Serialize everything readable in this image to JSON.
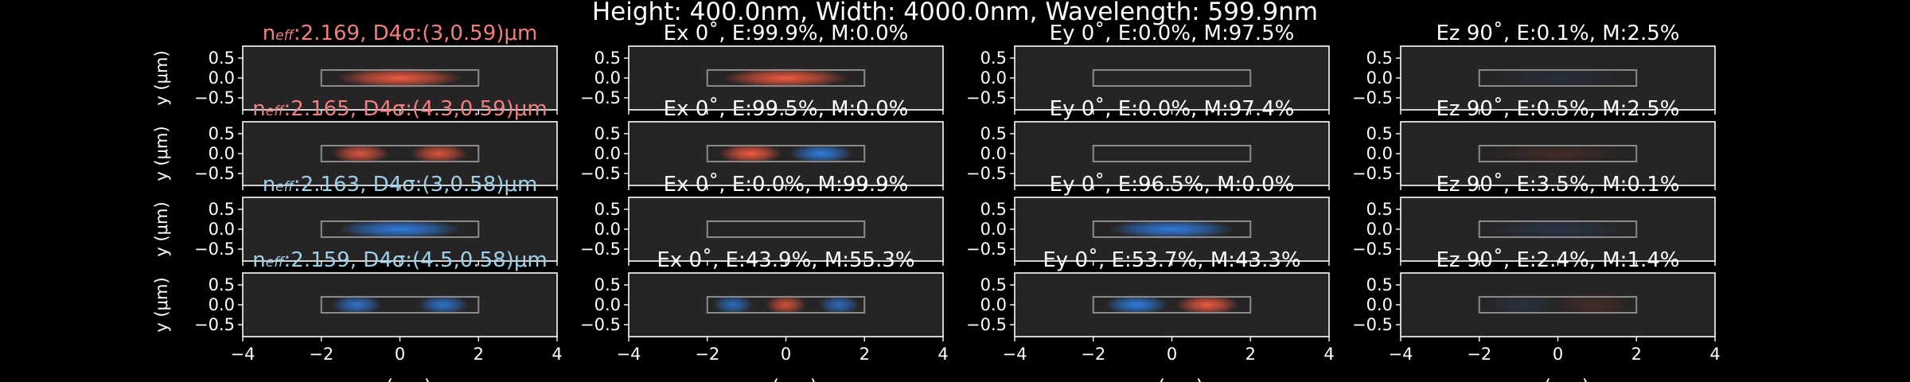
{
  "figure": {
    "suptitle": "Height: 400.0nm, Width: 4000.0nm, Wavelength: 599.9nm",
    "ylabel": "y (μm)",
    "xlabel": "x (μm)",
    "colors": {
      "background": "#000000",
      "panel": "#262424",
      "text": "#ffffff",
      "mode_te": "#f08080",
      "mode_tm": "#9ed0ea",
      "positive": "#f05a40",
      "negative": "#2f7de0",
      "waveguide": "#8a8a8a"
    }
  },
  "chart_data": {
    "type": "heatmap",
    "xlim": [
      -4,
      4
    ],
    "ylim": [
      -0.8,
      0.8
    ],
    "xticks": [
      "−4",
      "−2",
      "0",
      "2",
      "4"
    ],
    "yticks": [
      "0.5",
      "0.0",
      "−0.5"
    ],
    "waveguide": {
      "x": [
        -2,
        2
      ],
      "y": [
        -0.2,
        0.2
      ]
    },
    "rows": [
      {
        "mode_title": {
          "prefix": "n",
          "sub": "eff",
          "rest": ":2.169, D4σ:(3,0.59)μm",
          "color": "#f08080"
        },
        "panels": [
          {
            "title": "",
            "lobes": [
              {
                "x": 0,
                "sx": 1.0,
                "sy": 0.16,
                "amp": 1.0,
                "sign": 1
              }
            ]
          },
          {
            "title": "Ex 0˚, E:99.9%, M:0.0%",
            "lobes": [
              {
                "x": 0,
                "sx": 1.0,
                "sy": 0.16,
                "amp": 1.0,
                "sign": 1
              }
            ]
          },
          {
            "title": "Ey 0˚, E:0.0%, M:97.5%",
            "lobes": []
          },
          {
            "title": "Ez 90˚, E:0.1%, M:2.5%",
            "lobes": [
              {
                "x": 0,
                "sx": 1.2,
                "sy": 0.16,
                "amp": 0.12,
                "sign": -1
              }
            ]
          }
        ]
      },
      {
        "mode_title": {
          "prefix": "n",
          "sub": "eff",
          "rest": ":2.165, D4σ:(4.3,0.59)μm",
          "color": "#f08080"
        },
        "panels": [
          {
            "title": "",
            "lobes": [
              {
                "x": -1.0,
                "sx": 0.45,
                "sy": 0.16,
                "amp": 0.9,
                "sign": 1
              },
              {
                "x": 1.0,
                "sx": 0.45,
                "sy": 0.16,
                "amp": 0.9,
                "sign": 1
              }
            ]
          },
          {
            "title": "Ex 0˚, E:99.5%, M:0.0%",
            "lobes": [
              {
                "x": -0.9,
                "sx": 0.5,
                "sy": 0.16,
                "amp": 1.0,
                "sign": 1
              },
              {
                "x": 0.9,
                "sx": 0.5,
                "sy": 0.16,
                "amp": 1.0,
                "sign": -1
              }
            ]
          },
          {
            "title": "Ey 0˚, E:0.0%, M:97.4%",
            "lobes": []
          },
          {
            "title": "Ez 90˚, E:0.5%, M:2.5%",
            "lobes": [
              {
                "x": 0,
                "sx": 1.0,
                "sy": 0.16,
                "amp": 0.14,
                "sign": 1
              }
            ]
          }
        ]
      },
      {
        "mode_title": {
          "prefix": "n",
          "sub": "eff",
          "rest": ":2.163, D4σ:(3,0.58)μm",
          "color": "#9ed0ea"
        },
        "panels": [
          {
            "title": "",
            "lobes": [
              {
                "x": 0,
                "sx": 1.0,
                "sy": 0.16,
                "amp": 1.0,
                "sign": -1
              }
            ]
          },
          {
            "title": "Ex 0˚, E:0.0%, M:99.9%",
            "lobes": []
          },
          {
            "title": "Ey 0˚, E:96.5%, M:0.0%",
            "lobes": [
              {
                "x": 0,
                "sx": 1.0,
                "sy": 0.16,
                "amp": 1.0,
                "sign": -1
              }
            ]
          },
          {
            "title": "Ez 90˚, E:3.5%, M:0.1%",
            "lobes": [
              {
                "x": 0,
                "sx": 1.2,
                "sy": 0.2,
                "amp": 0.18,
                "sign": -1
              }
            ]
          }
        ]
      },
      {
        "mode_title": {
          "prefix": "n",
          "sub": "eff",
          "rest": ":2.159, D4σ:(4.5,0.58)μm",
          "color": "#9ed0ea"
        },
        "panels": [
          {
            "title": "",
            "lobes": [
              {
                "x": -1.1,
                "sx": 0.4,
                "sy": 0.16,
                "amp": 0.9,
                "sign": -1
              },
              {
                "x": 1.1,
                "sx": 0.4,
                "sy": 0.16,
                "amp": 0.9,
                "sign": -1
              }
            ]
          },
          {
            "title": "Ex 0˚, E:43.9%, M:55.3%",
            "lobes": [
              {
                "x": -1.35,
                "sx": 0.32,
                "sy": 0.16,
                "amp": 0.8,
                "sign": -1
              },
              {
                "x": 0,
                "sx": 0.32,
                "sy": 0.16,
                "amp": 0.85,
                "sign": 1
              },
              {
                "x": 1.35,
                "sx": 0.32,
                "sy": 0.16,
                "amp": 0.8,
                "sign": -1
              }
            ]
          },
          {
            "title": "Ey 0˚, E:53.7%, M:43.3%",
            "lobes": [
              {
                "x": -0.9,
                "sx": 0.5,
                "sy": 0.16,
                "amp": 1.0,
                "sign": -1
              },
              {
                "x": 0.9,
                "sx": 0.5,
                "sy": 0.16,
                "amp": 1.0,
                "sign": 1
              }
            ]
          },
          {
            "title": "Ez 90˚, E:2.4%, M:1.4%",
            "lobes": [
              {
                "x": -0.9,
                "sx": 0.6,
                "sy": 0.2,
                "amp": 0.15,
                "sign": -1
              },
              {
                "x": 0.9,
                "sx": 0.6,
                "sy": 0.2,
                "amp": 0.15,
                "sign": 1
              }
            ]
          }
        ]
      }
    ]
  }
}
